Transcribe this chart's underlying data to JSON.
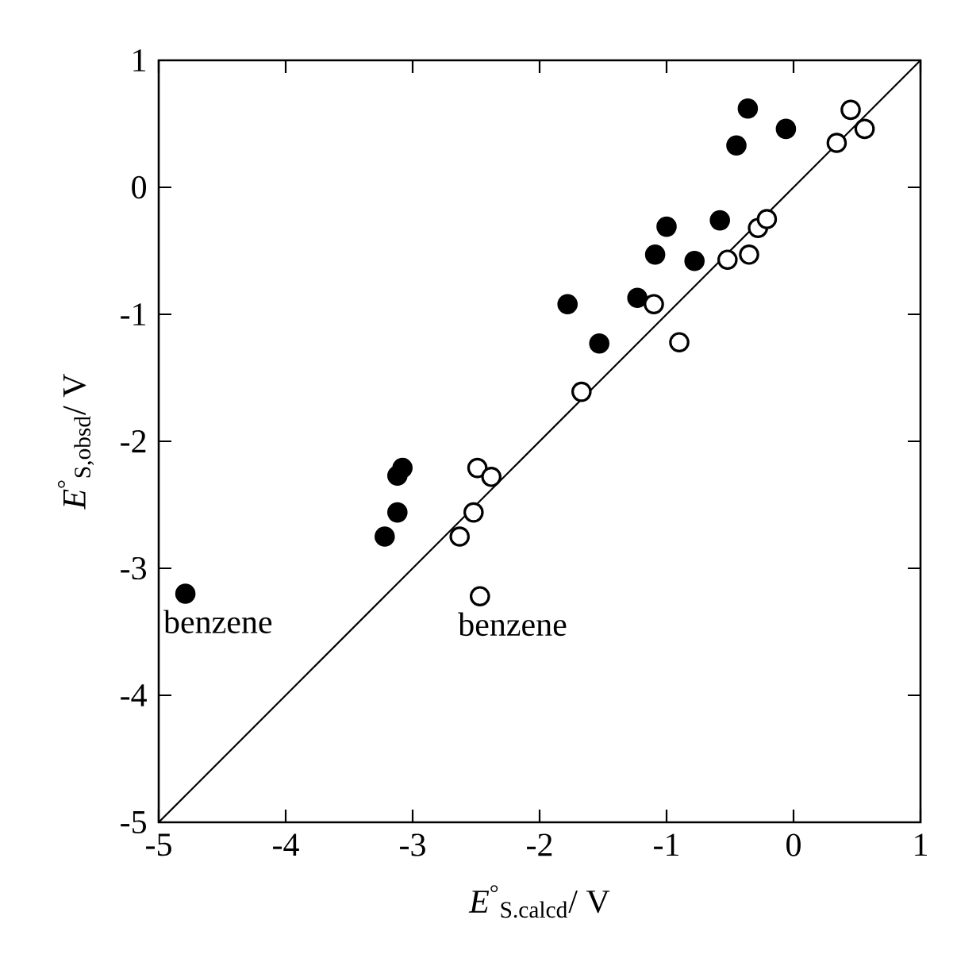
{
  "chart_data": {
    "type": "scatter",
    "xlabel": "*E*$^{°}$$_{S.calcd}$/ V",
    "ylabel": "*E*$^{°}$$_{S,obsd}$/ V",
    "xlim": [
      -5,
      1
    ],
    "ylim": [
      -5,
      1
    ],
    "xticks": [
      -5,
      -4,
      -3,
      -2,
      -1,
      0,
      1
    ],
    "yticks": [
      -5,
      -4,
      -3,
      -2,
      -1,
      0,
      1
    ],
    "marker": "circle",
    "series": [
      {
        "color": "#000000",
        "x": [
          -4.79,
          -3.22,
          -3.12,
          -3.12,
          -3.08,
          -1.78,
          -1.53,
          -1.23,
          -1.09,
          -1.0,
          -0.78,
          -0.58,
          -0.45,
          -0.36,
          -0.06
        ],
        "values": [
          -3.2,
          -2.75,
          -2.56,
          -2.27,
          -2.21,
          -0.92,
          -1.23,
          -0.87,
          -0.53,
          -0.31,
          -0.58,
          -0.26,
          0.33,
          0.62,
          0.46
        ]
      },
      {
        "color": "#ffffff",
        "x": [
          -1.1,
          -0.9,
          -1.67,
          -2.49,
          -2.38,
          -2.52,
          -2.63,
          -2.47,
          -0.52,
          -0.35,
          -0.28,
          -0.21,
          0.34,
          0.45,
          0.56
        ],
        "values": [
          -0.92,
          -1.22,
          -1.61,
          -2.21,
          -2.28,
          -2.56,
          -2.75,
          -3.22,
          -0.57,
          -0.53,
          -0.32,
          -0.25,
          0.35,
          0.61,
          0.46
        ]
      },
      {
        "type": "line",
        "color": "#000000",
        "line_style": "solid",
        "marker": "none",
        "x": [
          -5,
          1
        ],
        "values": [
          -5,
          1
        ]
      }
    ],
    "annotations": [
      {
        "text": "benzene",
        "x": -4.79,
        "y": -3.2
      },
      {
        "text": "benzene",
        "x": -2.47,
        "y": -3.22
      }
    ]
  }
}
